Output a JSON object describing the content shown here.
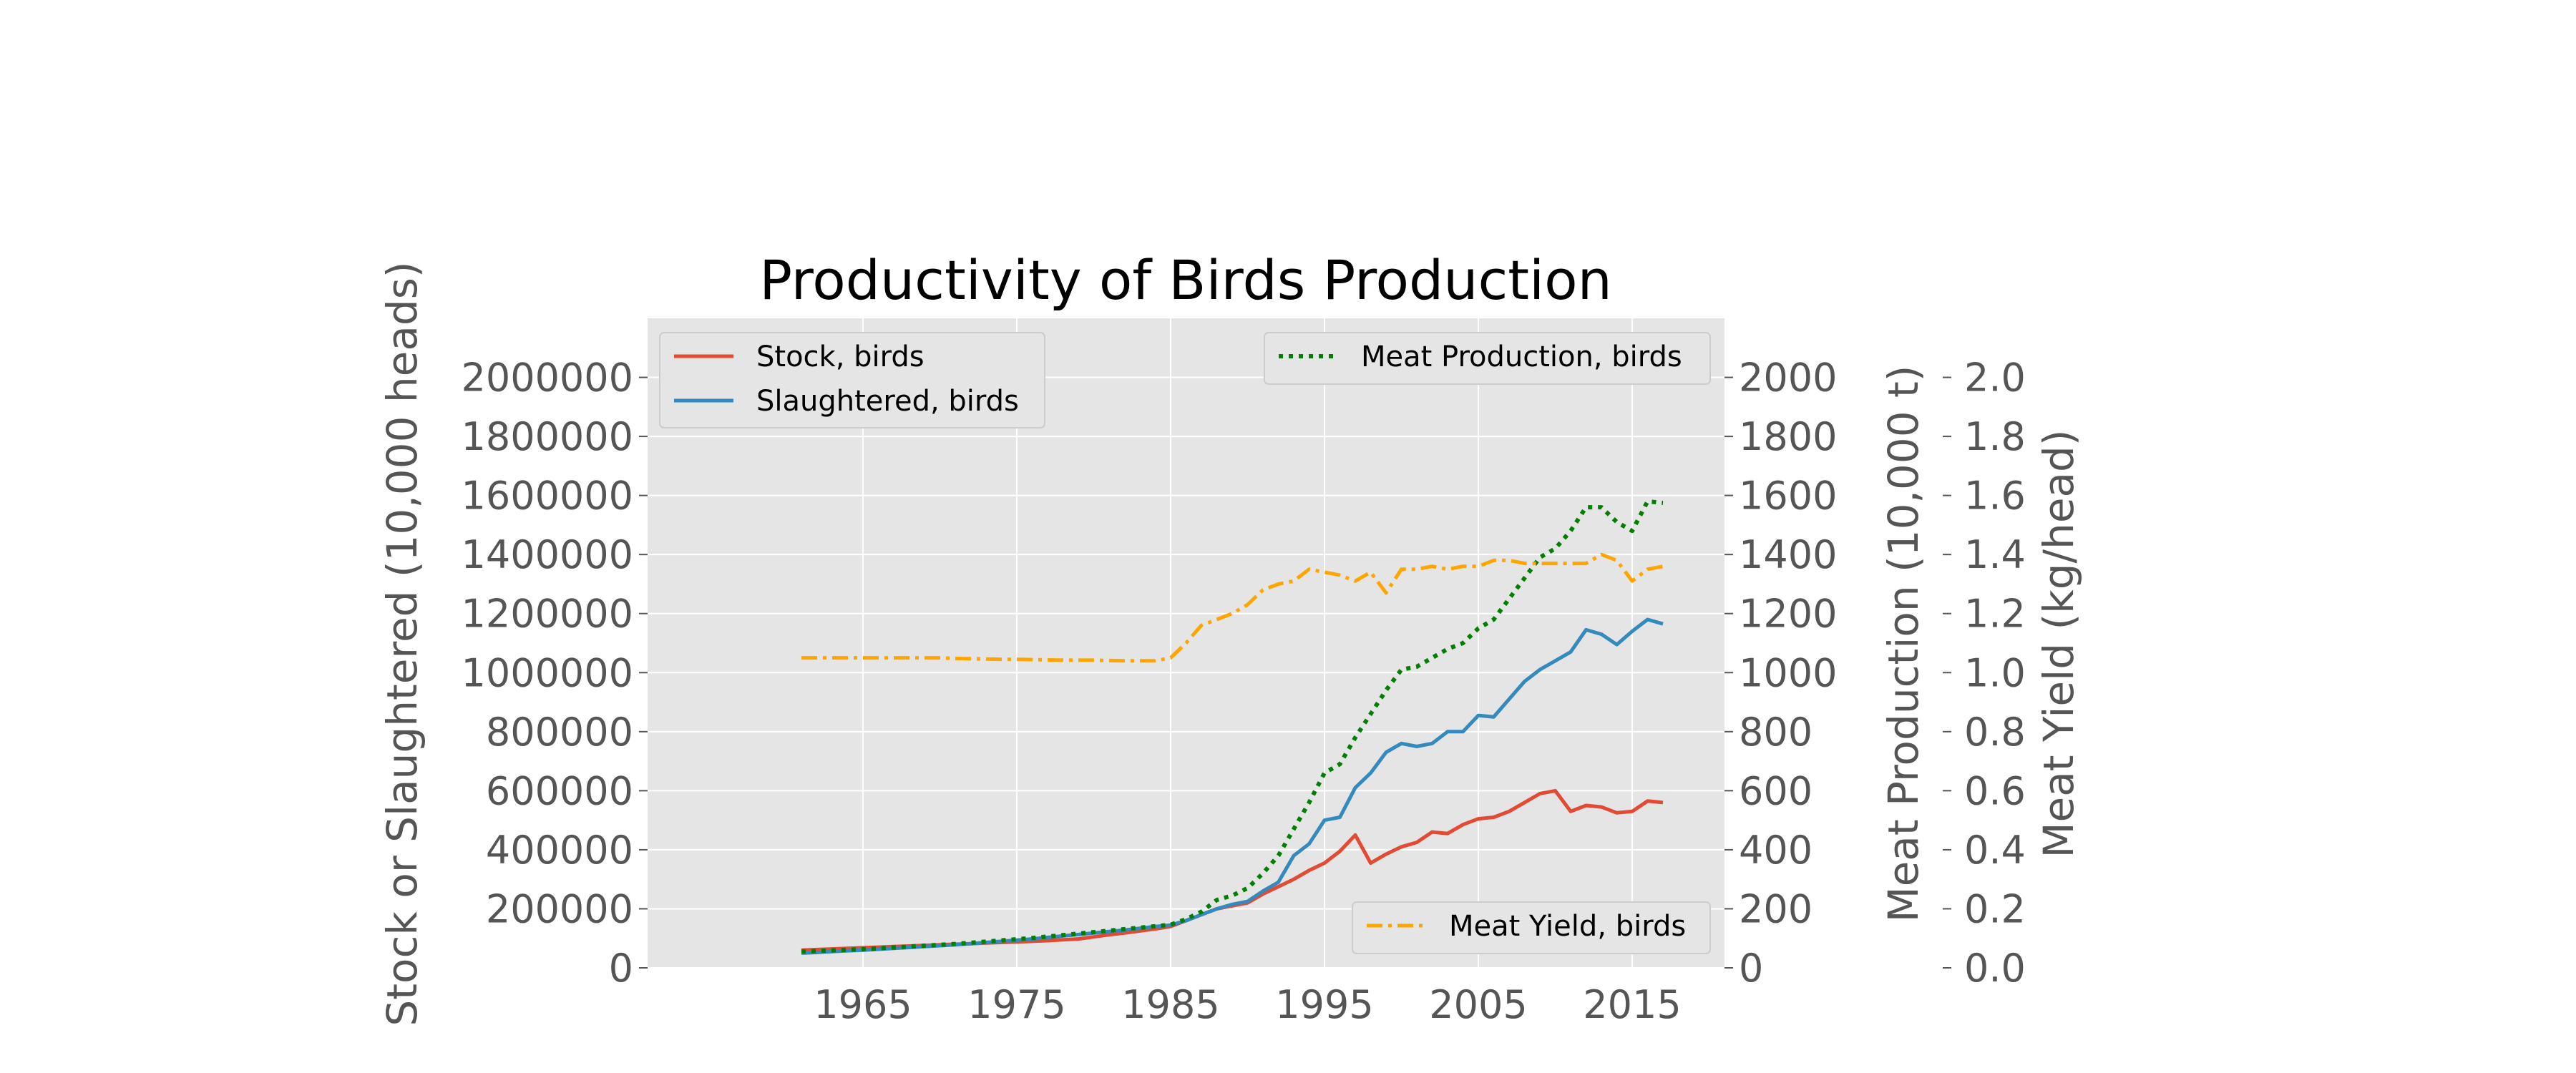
{
  "chart_data": {
    "type": "line",
    "title": "Productivity of Birds Production",
    "x": [
      1961,
      1962,
      1963,
      1964,
      1965,
      1966,
      1967,
      1968,
      1969,
      1970,
      1971,
      1972,
      1973,
      1974,
      1975,
      1976,
      1977,
      1978,
      1979,
      1980,
      1981,
      1982,
      1983,
      1984,
      1985,
      1986,
      1987,
      1988,
      1989,
      1990,
      1991,
      1992,
      1993,
      1994,
      1995,
      1996,
      1997,
      1998,
      1999,
      2000,
      2001,
      2002,
      2003,
      2004,
      2005,
      2006,
      2007,
      2008,
      2009,
      2010,
      2011,
      2012,
      2013,
      2014,
      2015,
      2016,
      2017
    ],
    "xticks": [
      1965,
      1975,
      1985,
      1995,
      2005,
      2015
    ],
    "xlim": [
      1951,
      2021
    ],
    "axes": {
      "left": {
        "label": "Stock or Slaughtered (10,000 heads)",
        "ylim": [
          0,
          2200000
        ],
        "ticks": [
          0,
          200000,
          400000,
          600000,
          800000,
          1000000,
          1200000,
          1400000,
          1600000,
          1800000,
          2000000
        ]
      },
      "right1": {
        "label": "Meat Production (10,000 t)",
        "ylim": [
          0,
          2200
        ],
        "ticks": [
          0,
          200,
          400,
          600,
          800,
          1000,
          1200,
          1400,
          1600,
          1800,
          2000
        ]
      },
      "right2": {
        "label": "Meat Yield (kg/head)",
        "ylim": [
          0,
          2.2
        ],
        "ticks": [
          "0.0",
          "0.2",
          "0.4",
          "0.6",
          "0.8",
          "1.0",
          "1.2",
          "1.4",
          "1.6",
          "1.8",
          "2.0"
        ]
      }
    },
    "series": [
      {
        "name": "Stock, birds",
        "axis": "left",
        "color": "#e24a33",
        "dash": "solid",
        "values": [
          60000,
          62000,
          64000,
          66000,
          68000,
          70000,
          72000,
          74000,
          76000,
          78000,
          80000,
          82000,
          84000,
          86000,
          88000,
          90000,
          92000,
          95000,
          98000,
          105000,
          112000,
          118000,
          125000,
          132000,
          140000,
          160000,
          180000,
          200000,
          210000,
          220000,
          250000,
          275000,
          300000,
          330000,
          355000,
          395000,
          450000,
          355000,
          385000,
          410000,
          425000,
          460000,
          455000,
          485000,
          505000,
          510000,
          530000,
          560000,
          590000,
          600000,
          530000,
          550000,
          545000,
          525000,
          530000,
          565000,
          560000
        ]
      },
      {
        "name": "Slaughtered, birds",
        "axis": "left",
        "color": "#348abd",
        "dash": "solid",
        "values": [
          50000,
          52000,
          55000,
          58000,
          60000,
          63000,
          66000,
          69000,
          72000,
          75000,
          78000,
          82000,
          86000,
          90000,
          94000,
          98000,
          103000,
          108000,
          113000,
          118000,
          123000,
          128000,
          134000,
          140000,
          145000,
          160000,
          180000,
          200000,
          215000,
          225000,
          260000,
          290000,
          380000,
          420000,
          500000,
          510000,
          610000,
          660000,
          730000,
          760000,
          750000,
          760000,
          800000,
          800000,
          855000,
          850000,
          910000,
          970000,
          1010000,
          1040000,
          1070000,
          1145000,
          1130000,
          1095000,
          1140000,
          1180000,
          1165000
        ]
      },
      {
        "name": "Meat Production, birds",
        "axis": "right1",
        "color": "#008000",
        "dash": "dotted",
        "values": [
          55,
          57,
          59,
          61,
          63,
          66,
          69,
          72,
          75,
          78,
          81,
          85,
          89,
          93,
          97,
          101,
          106,
          111,
          116,
          121,
          126,
          131,
          136,
          141,
          146,
          165,
          190,
          230,
          245,
          270,
          320,
          380,
          470,
          560,
          660,
          690,
          780,
          860,
          940,
          1010,
          1020,
          1050,
          1080,
          1100,
          1150,
          1180,
          1250,
          1320,
          1390,
          1420,
          1480,
          1560,
          1560,
          1510,
          1480,
          1580,
          1575
        ]
      },
      {
        "name": "Meat Yield, birds",
        "axis": "right2",
        "color": "#ffa500",
        "dash": "dashdot",
        "values": [
          1.05,
          1.05,
          1.05,
          1.05,
          1.05,
          1.05,
          1.05,
          1.05,
          1.05,
          1.05,
          1.048,
          1.047,
          1.046,
          1.045,
          1.045,
          1.044,
          1.043,
          1.042,
          1.042,
          1.042,
          1.041,
          1.04,
          1.04,
          1.04,
          1.05,
          1.1,
          1.16,
          1.18,
          1.2,
          1.23,
          1.28,
          1.3,
          1.31,
          1.35,
          1.34,
          1.33,
          1.31,
          1.34,
          1.27,
          1.35,
          1.35,
          1.36,
          1.35,
          1.36,
          1.36,
          1.38,
          1.38,
          1.37,
          1.37,
          1.37,
          1.37,
          1.37,
          1.4,
          1.38,
          1.31,
          1.35,
          1.36
        ]
      }
    ],
    "legends": [
      {
        "placement": "upper-left",
        "entries": [
          "Stock, birds",
          "Slaughtered, birds"
        ]
      },
      {
        "placement": "upper-right",
        "entries": [
          "Meat Production, birds"
        ]
      },
      {
        "placement": "lower-right",
        "entries": [
          "Meat Yield, birds"
        ]
      }
    ],
    "grid": true,
    "background": "#e5e5e5"
  }
}
